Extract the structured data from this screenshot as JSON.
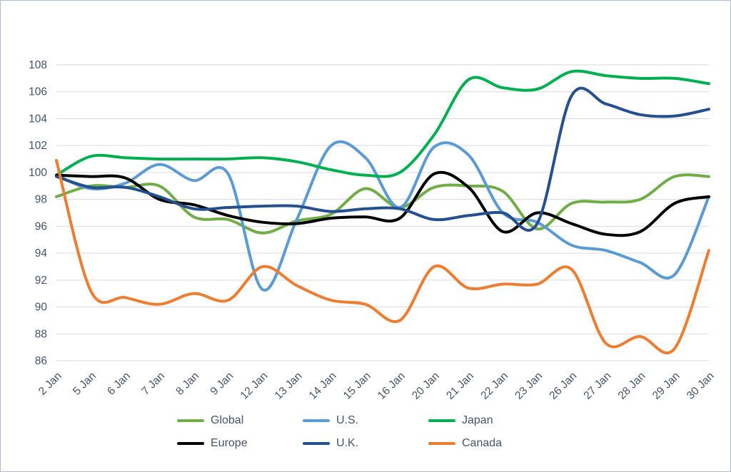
{
  "chart_data": {
    "type": "line",
    "title": "",
    "grid": true,
    "legend_position": "bottom",
    "text_color": "#44546a",
    "grid_color": "#d9d9d9",
    "ylim": [
      86,
      108
    ],
    "y_tick_step": 2,
    "categories": [
      "2 Jan",
      "5 Jan",
      "6 Jan",
      "7 Jan",
      "8 Jan",
      "9 Jan",
      "12 Jan",
      "13 Jan",
      "14 Jan",
      "15 Jan",
      "16 Jan",
      "20 Jan",
      "21 Jan",
      "22 Jan",
      "23 Jan",
      "26 Jan",
      "27 Jan",
      "28 Jan",
      "29 Jan",
      "30 Jan"
    ],
    "series": [
      {
        "name": "Global",
        "color": "#70ad47",
        "values": [
          98.2,
          99.0,
          98.9,
          99.0,
          96.7,
          96.5,
          95.5,
          96.4,
          96.9,
          98.8,
          97.4,
          98.9,
          99.0,
          98.6,
          95.8,
          97.7,
          97.8,
          98.0,
          99.7,
          99.7
        ]
      },
      {
        "name": "U.S.",
        "color": "#5b9bd5",
        "values": [
          99.8,
          98.8,
          99.2,
          100.6,
          99.4,
          99.9,
          91.3,
          96.5,
          102.0,
          101.1,
          97.4,
          101.9,
          101.3,
          97.0,
          96.3,
          94.6,
          94.2,
          93.3,
          92.4,
          98.2
        ]
      },
      {
        "name": "Japan",
        "color": "#00b050",
        "values": [
          99.8,
          101.2,
          101.1,
          101.0,
          101.0,
          101.0,
          101.1,
          100.8,
          100.2,
          99.8,
          100.0,
          102.8,
          106.9,
          106.3,
          106.2,
          107.5,
          107.2,
          107.0,
          107.0,
          106.6
        ]
      },
      {
        "name": "Europe",
        "color": "#000000",
        "values": [
          99.8,
          99.7,
          99.6,
          98.0,
          97.6,
          96.8,
          96.3,
          96.2,
          96.6,
          96.7,
          96.6,
          99.9,
          98.9,
          95.6,
          97.0,
          96.2,
          95.4,
          95.6,
          97.7,
          98.2
        ]
      },
      {
        "name": "U.K.",
        "color": "#24508f",
        "values": [
          99.7,
          98.9,
          98.9,
          98.2,
          97.3,
          97.4,
          97.5,
          97.5,
          97.1,
          97.3,
          97.3,
          96.5,
          96.8,
          97.0,
          96.2,
          105.7,
          105.1,
          104.3,
          104.2,
          104.7
        ]
      },
      {
        "name": "Canada",
        "color": "#ed7d31",
        "values": [
          100.9,
          91.2,
          90.7,
          90.2,
          91.0,
          90.5,
          93.0,
          91.6,
          90.5,
          90.2,
          89.0,
          93.0,
          91.4,
          91.7,
          91.7,
          92.8,
          87.3,
          87.8,
          86.9,
          94.2
        ]
      }
    ]
  }
}
